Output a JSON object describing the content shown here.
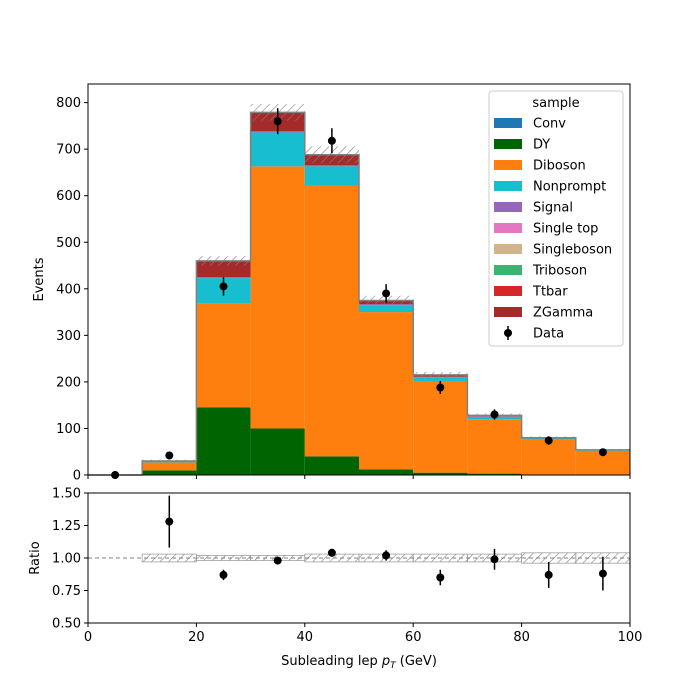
{
  "chart_data": {
    "type": "bar",
    "stacked": true,
    "bin_edges": [
      0,
      10,
      20,
      30,
      40,
      50,
      60,
      70,
      80,
      90,
      100
    ],
    "xlabel_main": "Subleading lep ",
    "xlabel_math": "p",
    "xlabel_sub": "T",
    "xlabel_unit": " (GeV)",
    "ylabel": "Events",
    "ratio_ylabel": "Ratio",
    "xlim": [
      0,
      100
    ],
    "ylim": [
      0,
      840
    ],
    "ratio_ylim": [
      0.5,
      1.5
    ],
    "x_ticks": [
      "0",
      "20",
      "40",
      "60",
      "80",
      "100"
    ],
    "y_ticks": [
      "0",
      "100",
      "200",
      "300",
      "400",
      "500",
      "600",
      "700",
      "800"
    ],
    "ratio_ticks": [
      "0.50",
      "0.75",
      "1.00",
      "1.25",
      "1.50"
    ],
    "legend_title": "sample",
    "legend_position": "top-right",
    "series": [
      {
        "name": "Conv",
        "color": "#1f77b4",
        "values": [
          0,
          0,
          0,
          0,
          0,
          0,
          0,
          0,
          0,
          0
        ]
      },
      {
        "name": "DY",
        "color": "#006400",
        "values": [
          0,
          10,
          145,
          100,
          40,
          12,
          5,
          3,
          1,
          0
        ]
      },
      {
        "name": "Diboson",
        "color": "#ff7f0e",
        "values": [
          0,
          17,
          223,
          563,
          583,
          338,
          197,
          117,
          75,
          52
        ]
      },
      {
        "name": "Nonprompt",
        "color": "#17becf",
        "values": [
          0,
          2,
          55,
          73,
          40,
          15,
          8,
          5,
          3,
          1
        ]
      },
      {
        "name": "Signal",
        "color": "#9467bd",
        "values": [
          0,
          0,
          2,
          3,
          3,
          2,
          1,
          1,
          0,
          0
        ]
      },
      {
        "name": "Single top",
        "color": "#e377c2",
        "values": [
          0,
          0,
          0,
          0,
          0,
          0,
          0,
          0,
          0,
          0
        ]
      },
      {
        "name": "Singleboson",
        "color": "#d2b48c",
        "values": [
          0,
          0,
          0,
          0,
          0,
          0,
          0,
          0,
          0,
          0
        ]
      },
      {
        "name": "Triboson",
        "color": "#3cb371",
        "values": [
          0,
          0,
          0,
          0,
          0,
          0,
          0,
          0,
          0,
          0
        ]
      },
      {
        "name": "Ttbar",
        "color": "#d62728",
        "values": [
          0,
          0,
          0,
          0,
          0,
          0,
          0,
          0,
          0,
          0
        ]
      },
      {
        "name": "ZGamma",
        "color": "#a52a2a",
        "values": [
          0,
          1,
          35,
          40,
          22,
          8,
          4,
          2,
          1,
          1
        ]
      }
    ],
    "mc_uncertainty": [
      0,
      3,
      10,
      18,
      18,
      10,
      6,
      4,
      3,
      2
    ],
    "data": {
      "name": "Data",
      "x": [
        5,
        15,
        25,
        35,
        45,
        55,
        65,
        75,
        85,
        95
      ],
      "y": [
        0,
        42,
        405,
        760,
        718,
        390,
        188,
        130,
        74,
        49
      ],
      "yerr": [
        0,
        7,
        20,
        28,
        27,
        20,
        14,
        11,
        9,
        7
      ]
    },
    "ratio": {
      "x": [
        15,
        25,
        35,
        45,
        55,
        65,
        75,
        85,
        95
      ],
      "y": [
        1.28,
        0.87,
        0.98,
        1.04,
        1.02,
        0.85,
        0.99,
        0.87,
        0.88
      ],
      "yerr": [
        0.2,
        0.04,
        0.03,
        0.03,
        0.04,
        0.06,
        0.08,
        0.1,
        0.13
      ],
      "band": [
        0,
        0.03,
        0.02,
        0.02,
        0.03,
        0.03,
        0.03,
        0.03,
        0.04,
        0.04
      ]
    },
    "colors": {
      "step_outline": "#808080",
      "hatch": "#808080",
      "data_marker": "#000000"
    }
  }
}
